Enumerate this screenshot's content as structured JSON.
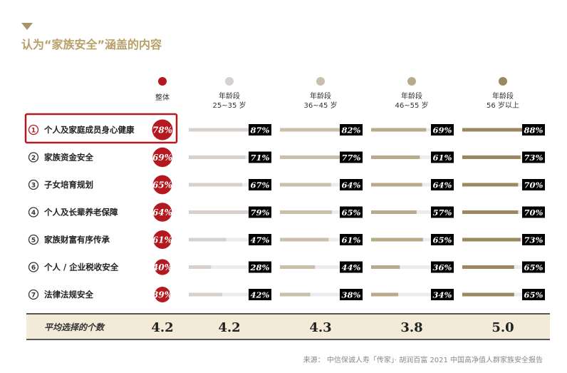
{
  "title": "认为“家族安全”涵盖的内容",
  "source": "来源： 中信保诚人寿「传家」· 胡润百富 2021 中国高净值人群家族安全报告",
  "avg_label": "平均选择的个数",
  "colors": {
    "accent": "#b8a06a",
    "overall": "#b3191f",
    "highlight_border": "#b3191f",
    "track": "#ececec",
    "badge_bg": "#000000",
    "footer_bg": "#f3ead8",
    "age_colors": [
      "#d8d0cc",
      "#c9bfaa",
      "#b8ab8a",
      "#9c8860"
    ]
  },
  "chart_data": {
    "type": "bar",
    "title": "认为“家族安全”涵盖的内容",
    "unit": "%",
    "categories": [
      {
        "num": "1",
        "label": "个人及家庭成员身心健康"
      },
      {
        "num": "2",
        "label": "家族资金安全"
      },
      {
        "num": "3",
        "label": "子女培育规划"
      },
      {
        "num": "4",
        "label": "个人及长辈养老保障"
      },
      {
        "num": "5",
        "label": "家族财富有序传承"
      },
      {
        "num": "6",
        "label": "个人 / 企业税收安全"
      },
      {
        "num": "7",
        "label": "法律法规安全"
      }
    ],
    "highlight_index": 0,
    "overall": {
      "name": "整体",
      "values": [
        78,
        69,
        65,
        64,
        61,
        40,
        39
      ],
      "labels": [
        "78%",
        "69%",
        "65%",
        "64%",
        "61%",
        "40%",
        "39%"
      ]
    },
    "series": [
      {
        "name_line1": "年龄段",
        "name_line2": "25~35 岁",
        "values": [
          87,
          71,
          67,
          79,
          47,
          28,
          42
        ],
        "labels": [
          "87%",
          "71%",
          "67%",
          "79%",
          "47%",
          "28%",
          "42%"
        ]
      },
      {
        "name_line1": "年龄段",
        "name_line2": "36~45 岁",
        "values": [
          82,
          77,
          64,
          65,
          61,
          44,
          38
        ],
        "labels": [
          "82%",
          "77%",
          "64%",
          "65%",
          "61%",
          "44%",
          "38%"
        ]
      },
      {
        "name_line1": "年龄段",
        "name_line2": "46~55 岁",
        "values": [
          69,
          61,
          64,
          57,
          65,
          36,
          34
        ],
        "labels": [
          "69%",
          "61%",
          "64%",
          "57%",
          "65%",
          "36%",
          "34%"
        ]
      },
      {
        "name_line1": "年龄段",
        "name_line2": "56 岁以上",
        "values": [
          88,
          73,
          70,
          70,
          73,
          65,
          65
        ],
        "labels": [
          "88%",
          "73%",
          "70%",
          "70%",
          "73%",
          "65%",
          "65%"
        ]
      }
    ],
    "averages": [
      "4.2",
      "4.2",
      "4.3",
      "3.8",
      "5.0"
    ]
  }
}
